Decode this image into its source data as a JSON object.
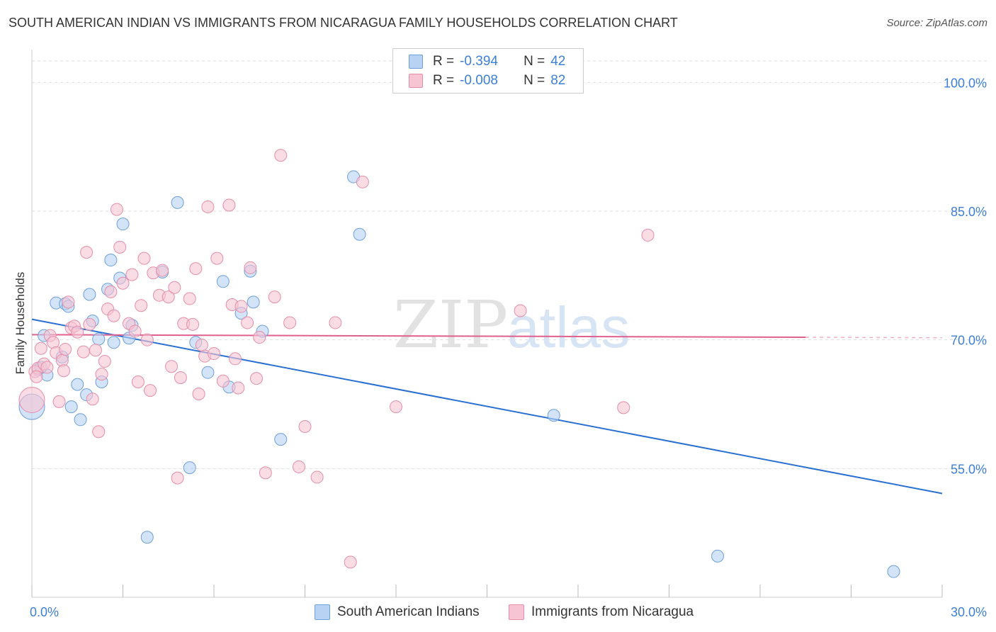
{
  "title": "SOUTH AMERICAN INDIAN VS IMMIGRANTS FROM NICARAGUA FAMILY HOUSEHOLDS CORRELATION CHART",
  "source": "Source: ZipAtlas.com",
  "watermark": {
    "zip": "ZIP",
    "atlas": "atlas"
  },
  "legend": {
    "r_label": "R =",
    "n_label": "N =",
    "series1": {
      "r": "-0.394",
      "n": "42"
    },
    "series2": {
      "r": "-0.008",
      "n": "82"
    }
  },
  "colors": {
    "blue_fill": "#b8d2f3",
    "blue_stroke": "#6d9fdc",
    "blue_line": "#2a70d2",
    "pink_fill": "#f6c4d3",
    "pink_stroke": "#e58ea9",
    "pink_line": "#e0608e",
    "tick_label": "#3d7fd8",
    "grid": "#dddddd"
  },
  "chart_data": {
    "type": "scatter",
    "xlabel": "",
    "ylabel": "Family Households",
    "xlim": [
      0,
      30
    ],
    "ylim": [
      40,
      103
    ],
    "x_tick_labels": [
      "0.0%",
      "30.0%"
    ],
    "y_ticks": [
      55,
      70,
      85,
      100
    ],
    "y_tick_labels": [
      "55.0%",
      "70.0%",
      "85.0%",
      "100.0%"
    ],
    "grid": true,
    "legend_position": "top-center",
    "series": [
      {
        "name": "South American Indians",
        "r": -0.394,
        "n": 42,
        "trend": {
          "x": [
            0,
            30
          ],
          "y": [
            72.4,
            52.1
          ]
        },
        "points": [
          {
            "x": 0.0,
            "y": 62.2,
            "s": "lg"
          },
          {
            "x": 0.2,
            "y": 66.5
          },
          {
            "x": 0.4,
            "y": 70.5
          },
          {
            "x": 0.5,
            "y": 65.9
          },
          {
            "x": 0.8,
            "y": 74.3
          },
          {
            "x": 1.0,
            "y": 68.0
          },
          {
            "x": 1.1,
            "y": 74.2
          },
          {
            "x": 1.2,
            "y": 73.9
          },
          {
            "x": 1.3,
            "y": 62.2
          },
          {
            "x": 1.5,
            "y": 64.8
          },
          {
            "x": 1.6,
            "y": 60.7
          },
          {
            "x": 1.8,
            "y": 63.6
          },
          {
            "x": 1.9,
            "y": 75.3
          },
          {
            "x": 2.0,
            "y": 72.2
          },
          {
            "x": 2.2,
            "y": 70.1
          },
          {
            "x": 2.3,
            "y": 65.1
          },
          {
            "x": 2.5,
            "y": 75.9
          },
          {
            "x": 2.6,
            "y": 79.3
          },
          {
            "x": 2.7,
            "y": 69.7
          },
          {
            "x": 2.9,
            "y": 77.2
          },
          {
            "x": 3.0,
            "y": 83.5
          },
          {
            "x": 3.2,
            "y": 70.2
          },
          {
            "x": 3.3,
            "y": 71.7
          },
          {
            "x": 3.8,
            "y": 47.0
          },
          {
            "x": 4.3,
            "y": 77.9
          },
          {
            "x": 4.8,
            "y": 86.0
          },
          {
            "x": 5.2,
            "y": 55.1
          },
          {
            "x": 5.4,
            "y": 69.7
          },
          {
            "x": 5.8,
            "y": 66.2
          },
          {
            "x": 6.3,
            "y": 76.8
          },
          {
            "x": 6.5,
            "y": 64.5
          },
          {
            "x": 6.9,
            "y": 73.1
          },
          {
            "x": 7.2,
            "y": 78.0
          },
          {
            "x": 7.3,
            "y": 74.4
          },
          {
            "x": 7.6,
            "y": 71.0
          },
          {
            "x": 8.2,
            "y": 58.4
          },
          {
            "x": 10.6,
            "y": 89.0
          },
          {
            "x": 10.8,
            "y": 82.3
          },
          {
            "x": 17.2,
            "y": 61.2
          },
          {
            "x": 22.6,
            "y": 44.8
          },
          {
            "x": 28.4,
            "y": 43.0
          },
          {
            "x": 0.3,
            "y": 66.8
          }
        ]
      },
      {
        "name": "Immigrants from Nicaragua",
        "r": -0.008,
        "n": 82,
        "trend": {
          "x": [
            0,
            25.5
          ],
          "y": [
            70.6,
            70.3
          ]
        },
        "points": [
          {
            "x": 0.0,
            "y": 63.0,
            "s": "lg"
          },
          {
            "x": 0.1,
            "y": 66.3
          },
          {
            "x": 0.2,
            "y": 66.7
          },
          {
            "x": 0.3,
            "y": 69.0
          },
          {
            "x": 0.4,
            "y": 67.2
          },
          {
            "x": 0.5,
            "y": 66.8
          },
          {
            "x": 0.6,
            "y": 70.5
          },
          {
            "x": 0.7,
            "y": 69.7
          },
          {
            "x": 0.8,
            "y": 68.5
          },
          {
            "x": 0.9,
            "y": 62.8
          },
          {
            "x": 1.0,
            "y": 67.6
          },
          {
            "x": 1.1,
            "y": 68.9
          },
          {
            "x": 1.2,
            "y": 74.4
          },
          {
            "x": 1.3,
            "y": 71.4
          },
          {
            "x": 1.4,
            "y": 71.6
          },
          {
            "x": 1.5,
            "y": 70.9
          },
          {
            "x": 1.7,
            "y": 68.6
          },
          {
            "x": 1.8,
            "y": 80.2
          },
          {
            "x": 1.9,
            "y": 71.8
          },
          {
            "x": 2.0,
            "y": 63.1
          },
          {
            "x": 2.1,
            "y": 68.8
          },
          {
            "x": 2.2,
            "y": 59.3
          },
          {
            "x": 2.3,
            "y": 66.0
          },
          {
            "x": 2.4,
            "y": 67.5
          },
          {
            "x": 2.5,
            "y": 73.6
          },
          {
            "x": 2.6,
            "y": 75.6
          },
          {
            "x": 2.7,
            "y": 72.8
          },
          {
            "x": 2.8,
            "y": 85.2
          },
          {
            "x": 2.9,
            "y": 80.8
          },
          {
            "x": 3.0,
            "y": 76.6
          },
          {
            "x": 3.2,
            "y": 71.9
          },
          {
            "x": 3.3,
            "y": 77.6
          },
          {
            "x": 3.4,
            "y": 71.0
          },
          {
            "x": 3.5,
            "y": 65.1
          },
          {
            "x": 3.6,
            "y": 74.0
          },
          {
            "x": 3.7,
            "y": 79.5
          },
          {
            "x": 3.8,
            "y": 70.0
          },
          {
            "x": 3.9,
            "y": 64.1
          },
          {
            "x": 4.0,
            "y": 77.8
          },
          {
            "x": 4.2,
            "y": 75.2
          },
          {
            "x": 4.3,
            "y": 78.1
          },
          {
            "x": 4.5,
            "y": 75.0
          },
          {
            "x": 4.6,
            "y": 66.9
          },
          {
            "x": 4.7,
            "y": 76.1
          },
          {
            "x": 4.8,
            "y": 53.9
          },
          {
            "x": 4.9,
            "y": 65.6
          },
          {
            "x": 5.0,
            "y": 71.9
          },
          {
            "x": 5.2,
            "y": 74.8
          },
          {
            "x": 5.3,
            "y": 71.8
          },
          {
            "x": 5.4,
            "y": 78.3
          },
          {
            "x": 5.5,
            "y": 63.7
          },
          {
            "x": 5.6,
            "y": 69.4
          },
          {
            "x": 5.7,
            "y": 68.1
          },
          {
            "x": 5.8,
            "y": 85.5
          },
          {
            "x": 6.0,
            "y": 68.4
          },
          {
            "x": 6.1,
            "y": 79.5
          },
          {
            "x": 6.3,
            "y": 65.2
          },
          {
            "x": 6.5,
            "y": 85.7
          },
          {
            "x": 6.6,
            "y": 74.1
          },
          {
            "x": 6.7,
            "y": 67.8
          },
          {
            "x": 6.8,
            "y": 64.4
          },
          {
            "x": 6.9,
            "y": 73.9
          },
          {
            "x": 7.1,
            "y": 72.0
          },
          {
            "x": 7.2,
            "y": 78.4
          },
          {
            "x": 7.4,
            "y": 65.5
          },
          {
            "x": 7.5,
            "y": 70.3
          },
          {
            "x": 7.7,
            "y": 54.5
          },
          {
            "x": 8.0,
            "y": 75.0
          },
          {
            "x": 8.2,
            "y": 91.5
          },
          {
            "x": 8.5,
            "y": 72.0
          },
          {
            "x": 8.8,
            "y": 55.2
          },
          {
            "x": 9.0,
            "y": 59.9
          },
          {
            "x": 9.4,
            "y": 54.0
          },
          {
            "x": 10.0,
            "y": 72.0
          },
          {
            "x": 10.5,
            "y": 44.1
          },
          {
            "x": 10.9,
            "y": 88.4
          },
          {
            "x": 12.0,
            "y": 62.2
          },
          {
            "x": 16.1,
            "y": 73.4
          },
          {
            "x": 19.5,
            "y": 62.1
          },
          {
            "x": 20.3,
            "y": 82.2
          },
          {
            "x": 0.15,
            "y": 65.7
          },
          {
            "x": 1.05,
            "y": 66.4
          }
        ]
      }
    ]
  }
}
